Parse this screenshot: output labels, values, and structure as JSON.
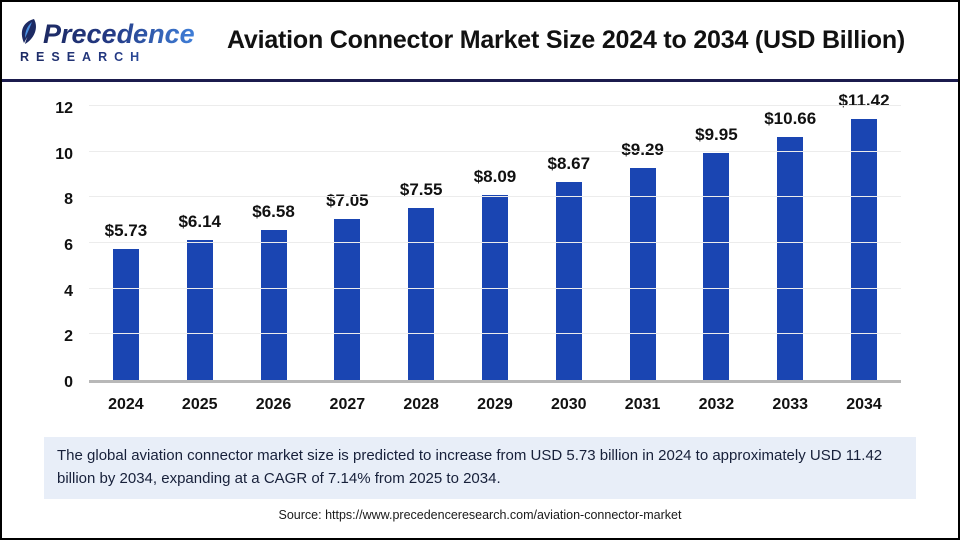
{
  "header": {
    "logo": {
      "name": "Precedence",
      "subtitle": "RESEARCH"
    },
    "title": "Aviation Connector Market Size 2024 to 2034 (USD Billion)"
  },
  "chart_data": {
    "type": "bar",
    "title": "Aviation Connector Market Size 2024 to 2034 (USD Billion)",
    "categories": [
      "2024",
      "2025",
      "2026",
      "2027",
      "2028",
      "2029",
      "2030",
      "2031",
      "2032",
      "2033",
      "2034"
    ],
    "values": [
      5.73,
      6.14,
      6.58,
      7.05,
      7.55,
      8.09,
      8.67,
      9.29,
      9.95,
      10.66,
      11.42
    ],
    "value_labels": [
      "$5.73",
      "$6.14",
      "$6.58",
      "$7.05",
      "$7.55",
      "$8.09",
      "$8.67",
      "$9.29",
      "$9.95",
      "$10.66",
      "$11.42"
    ],
    "xlabel": "",
    "ylabel": "",
    "ylim": [
      0,
      12
    ],
    "yticks": [
      0,
      2,
      4,
      6,
      8,
      10,
      12
    ],
    "grid": true,
    "legend": "none",
    "bar_color": "#1a45b2"
  },
  "note": {
    "text": "The global aviation connector market size is predicted to increase from USD 5.73 billion in 2024 to approximately USD 11.42 billion by 2034, expanding at a CAGR of 7.14% from 2025 to 2034."
  },
  "source": {
    "text": "Source: https://www.precedenceresearch.com/aviation-connector-market"
  }
}
